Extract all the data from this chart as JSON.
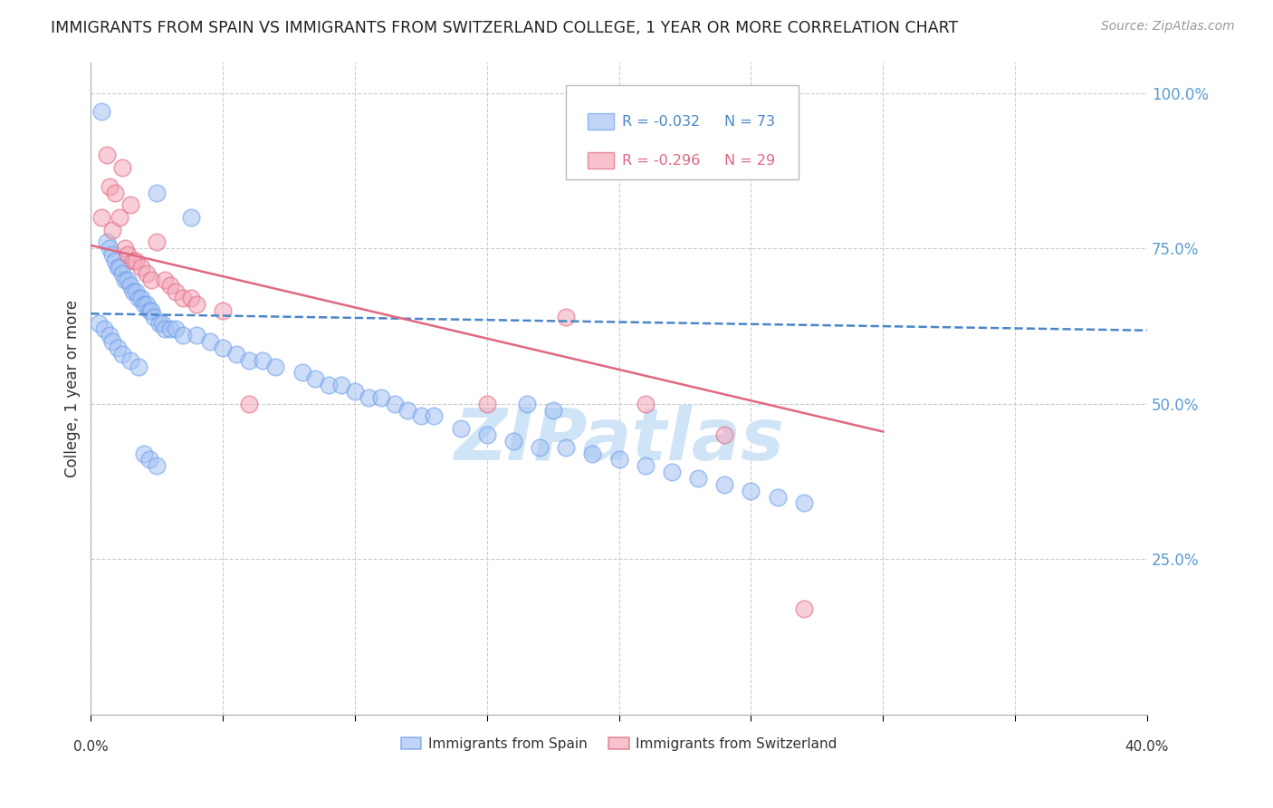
{
  "title": "IMMIGRANTS FROM SPAIN VS IMMIGRANTS FROM SWITZERLAND COLLEGE, 1 YEAR OR MORE CORRELATION CHART",
  "source": "Source: ZipAtlas.com",
  "ylabel": "College, 1 year or more",
  "xlim": [
    0.0,
    0.4
  ],
  "ylim": [
    0.0,
    1.05
  ],
  "x_ticks": [
    0.0,
    0.05,
    0.1,
    0.15,
    0.2,
    0.25,
    0.3,
    0.35,
    0.4
  ],
  "y_ticks": [
    0.0,
    0.25,
    0.5,
    0.75,
    1.0
  ],
  "y_tick_labels_right": [
    "",
    "25.0%",
    "50.0%",
    "75.0%",
    "100.0%"
  ],
  "legend_R_spain": "-0.032",
  "legend_N_spain": "73",
  "legend_R_swiss": "-0.296",
  "legend_N_swiss": "29",
  "blue_color": "#a4c2f4",
  "pink_color": "#f4a7b9",
  "blue_edge_color": "#6d9eeb",
  "pink_edge_color": "#e06880",
  "blue_line_color": "#4a86c8",
  "pink_line_color": "#e06880",
  "grid_color": "#cccccc",
  "watermark_color": "#d0e4f7",
  "background_color": "#ffffff",
  "spain_x": [
    0.004,
    0.006,
    0.007,
    0.008,
    0.009,
    0.01,
    0.011,
    0.012,
    0.013,
    0.014,
    0.015,
    0.016,
    0.017,
    0.018,
    0.019,
    0.02,
    0.021,
    0.022,
    0.023,
    0.024,
    0.025,
    0.026,
    0.027,
    0.028,
    0.03,
    0.032,
    0.035,
    0.038,
    0.04,
    0.045,
    0.05,
    0.055,
    0.06,
    0.065,
    0.07,
    0.08,
    0.085,
    0.09,
    0.095,
    0.1,
    0.105,
    0.11,
    0.115,
    0.12,
    0.125,
    0.13,
    0.14,
    0.15,
    0.16,
    0.17,
    0.18,
    0.19,
    0.2,
    0.21,
    0.22,
    0.23,
    0.24,
    0.25,
    0.26,
    0.27,
    0.165,
    0.175,
    0.003,
    0.005,
    0.007,
    0.008,
    0.01,
    0.012,
    0.015,
    0.018,
    0.02,
    0.022,
    0.025
  ],
  "spain_y": [
    0.97,
    0.76,
    0.75,
    0.74,
    0.73,
    0.72,
    0.72,
    0.71,
    0.7,
    0.7,
    0.69,
    0.68,
    0.68,
    0.67,
    0.67,
    0.66,
    0.66,
    0.65,
    0.65,
    0.64,
    0.84,
    0.63,
    0.63,
    0.62,
    0.62,
    0.62,
    0.61,
    0.8,
    0.61,
    0.6,
    0.59,
    0.58,
    0.57,
    0.57,
    0.56,
    0.55,
    0.54,
    0.53,
    0.53,
    0.52,
    0.51,
    0.51,
    0.5,
    0.49,
    0.48,
    0.48,
    0.46,
    0.45,
    0.44,
    0.43,
    0.43,
    0.42,
    0.41,
    0.4,
    0.39,
    0.38,
    0.37,
    0.36,
    0.35,
    0.34,
    0.5,
    0.49,
    0.63,
    0.62,
    0.61,
    0.6,
    0.59,
    0.58,
    0.57,
    0.56,
    0.42,
    0.41,
    0.4
  ],
  "swiss_x": [
    0.004,
    0.006,
    0.007,
    0.008,
    0.009,
    0.011,
    0.012,
    0.013,
    0.014,
    0.015,
    0.016,
    0.017,
    0.019,
    0.021,
    0.023,
    0.025,
    0.028,
    0.03,
    0.032,
    0.035,
    0.038,
    0.04,
    0.05,
    0.06,
    0.15,
    0.18,
    0.21,
    0.24,
    0.27
  ],
  "swiss_y": [
    0.8,
    0.9,
    0.85,
    0.78,
    0.84,
    0.8,
    0.88,
    0.75,
    0.74,
    0.82,
    0.73,
    0.73,
    0.72,
    0.71,
    0.7,
    0.76,
    0.7,
    0.69,
    0.68,
    0.67,
    0.67,
    0.66,
    0.65,
    0.5,
    0.5,
    0.64,
    0.5,
    0.45,
    0.17
  ],
  "spain_trend_x": [
    0.0,
    0.4
  ],
  "spain_trend_y": [
    0.645,
    0.618
  ],
  "swiss_trend_x": [
    0.0,
    0.3
  ],
  "swiss_trend_y": [
    0.755,
    0.455
  ]
}
